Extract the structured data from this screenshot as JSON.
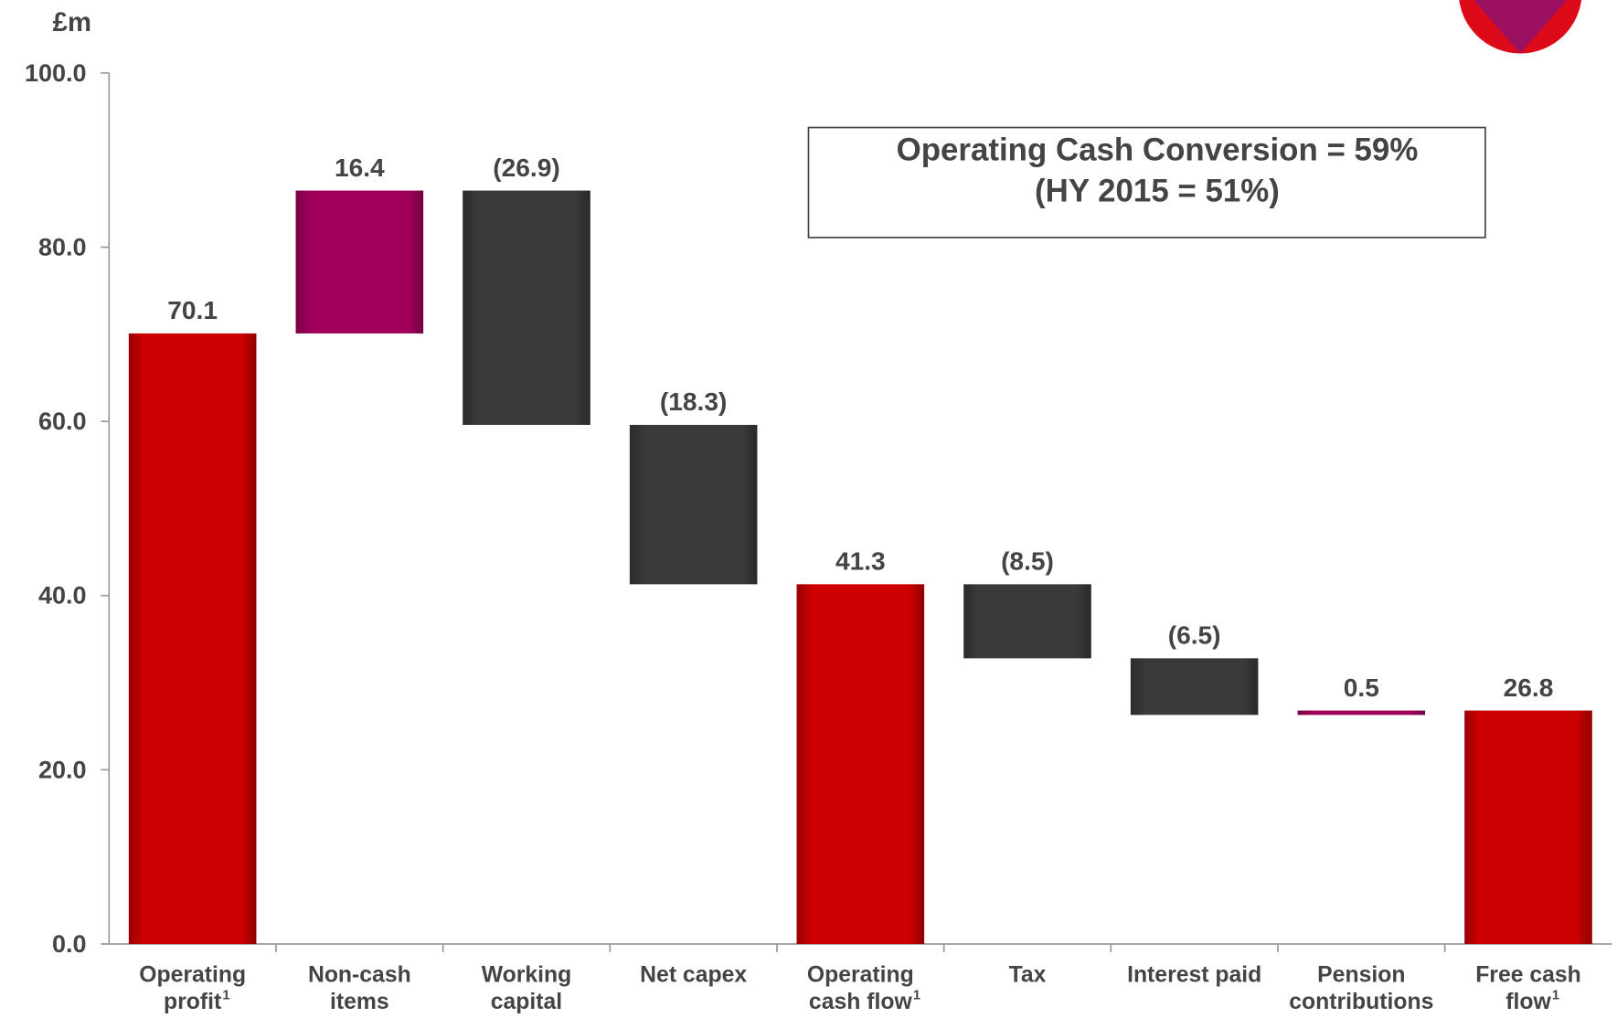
{
  "chart_data": {
    "type": "waterfall",
    "unit_label": "£m",
    "annotation": [
      "Operating Cash Conversion = 59%",
      "(HY 2015 = 51%)"
    ],
    "categories": [
      [
        "Operating",
        "profit"
      ],
      [
        "Non-cash",
        "items"
      ],
      [
        "Working",
        "capital"
      ],
      [
        "Net capex"
      ],
      [
        "Operating",
        "cash flow"
      ],
      [
        "Tax"
      ],
      [
        "Interest paid"
      ],
      [
        "Pension",
        "contributions"
      ],
      [
        "Free cash",
        "flow"
      ]
    ],
    "category_notes": [
      "1",
      null,
      null,
      null,
      "1",
      null,
      null,
      null,
      "1"
    ],
    "values": [
      70.1,
      16.4,
      -26.9,
      -18.3,
      41.3,
      -8.5,
      -6.5,
      0.5,
      26.8
    ],
    "value_labels": [
      "70.1",
      "16.4",
      "(26.9)",
      "(18.3)",
      "41.3",
      "(8.5)",
      "(6.5)",
      "0.5",
      "26.8"
    ],
    "is_total": [
      true,
      false,
      false,
      false,
      true,
      false,
      false,
      false,
      true
    ],
    "colors": [
      "#cc0000",
      "#a0005a",
      "#3a3a3a",
      "#3a3a3a",
      "#cc0000",
      "#3a3a3a",
      "#3a3a3a",
      "#a0005a",
      "#cc0000"
    ],
    "ylim": [
      0,
      100
    ],
    "yticks": [
      {
        "value": 0,
        "label": "0.0"
      },
      {
        "value": 20,
        "label": "20.0"
      },
      {
        "value": 40,
        "label": "40.0"
      },
      {
        "value": 60,
        "label": "60.0"
      },
      {
        "value": 80,
        "label": "80.0"
      },
      {
        "value": 100,
        "label": "100.0"
      }
    ]
  }
}
